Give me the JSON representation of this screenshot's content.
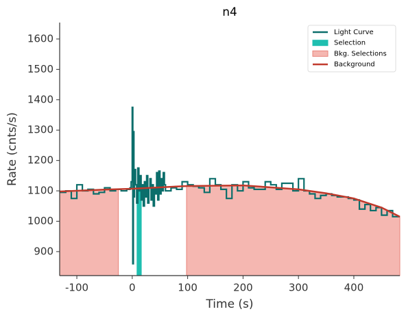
{
  "chart_data": {
    "type": "line",
    "title": "n4",
    "x_label": "Time (s)",
    "y_label": "Rate (cnts/s)",
    "xlim": [
      -131,
      483
    ],
    "ylim": [
      821,
      1654
    ],
    "xticks": [
      -100,
      0,
      100,
      200,
      300,
      400
    ],
    "yticks": [
      900,
      1000,
      1100,
      1200,
      1300,
      1400,
      1500,
      1600
    ],
    "legend": "upper right",
    "series": [
      {
        "name": "Light Curve",
        "color": "#0b6e6b",
        "x": [
          -131,
          -120,
          -110,
          -100,
          -90,
          -80,
          -70,
          -60,
          -50,
          -40,
          -30,
          -20,
          -10,
          -4,
          -2,
          0,
          1,
          2,
          3,
          4,
          6,
          8,
          10,
          12,
          14,
          16,
          18,
          20,
          22,
          24,
          26,
          28,
          30,
          32,
          34,
          36,
          38,
          40,
          42,
          44,
          46,
          48,
          50,
          52,
          54,
          56,
          58,
          60,
          70,
          80,
          90,
          100,
          110,
          120,
          130,
          140,
          150,
          160,
          170,
          180,
          190,
          200,
          210,
          220,
          230,
          240,
          250,
          260,
          270,
          280,
          290,
          300,
          310,
          320,
          330,
          340,
          350,
          360,
          370,
          380,
          390,
          400,
          410,
          420,
          430,
          440,
          450,
          460,
          470,
          480
        ],
        "values": [
          1095,
          1100,
          1075,
          1120,
          1100,
          1105,
          1090,
          1095,
          1110,
          1100,
          1105,
          1100,
          1105,
          1110,
          1130,
          1375,
          860,
          1295,
          1080,
          1170,
          1120,
          1060,
          1175,
          1100,
          1150,
          1070,
          1120,
          1050,
          1130,
          1080,
          1150,
          1060,
          1110,
          1140,
          1070,
          1120,
          1050,
          1110,
          1090,
          1160,
          1070,
          1165,
          1090,
          1140,
          1100,
          1160,
          1120,
          1100,
          1110,
          1105,
          1130,
          1120,
          1115,
          1110,
          1095,
          1140,
          1120,
          1105,
          1075,
          1120,
          1100,
          1130,
          1110,
          1105,
          1105,
          1130,
          1120,
          1105,
          1125,
          1125,
          1100,
          1140,
          1100,
          1090,
          1075,
          1085,
          1090,
          1085,
          1080,
          1080,
          1075,
          1070,
          1040,
          1055,
          1035,
          1045,
          1020,
          1035,
          1015,
          1015
        ]
      },
      {
        "name": "Background",
        "color": "#c0392b",
        "x": [
          -131,
          -50,
          0,
          100,
          200,
          300,
          350,
          400,
          450,
          483
        ],
        "values": [
          1098,
          1104,
          1107,
          1116,
          1118,
          1105,
          1092,
          1075,
          1045,
          1015
        ]
      }
    ],
    "selection": {
      "name": "Selection",
      "color": "#1fbfb0",
      "range": [
        8,
        17
      ]
    },
    "bkg_selections": {
      "name": "Bkg. Selections",
      "color": "#f5b7b1",
      "ranges": [
        [
          -131,
          -25
        ],
        [
          98,
          483
        ]
      ]
    }
  }
}
